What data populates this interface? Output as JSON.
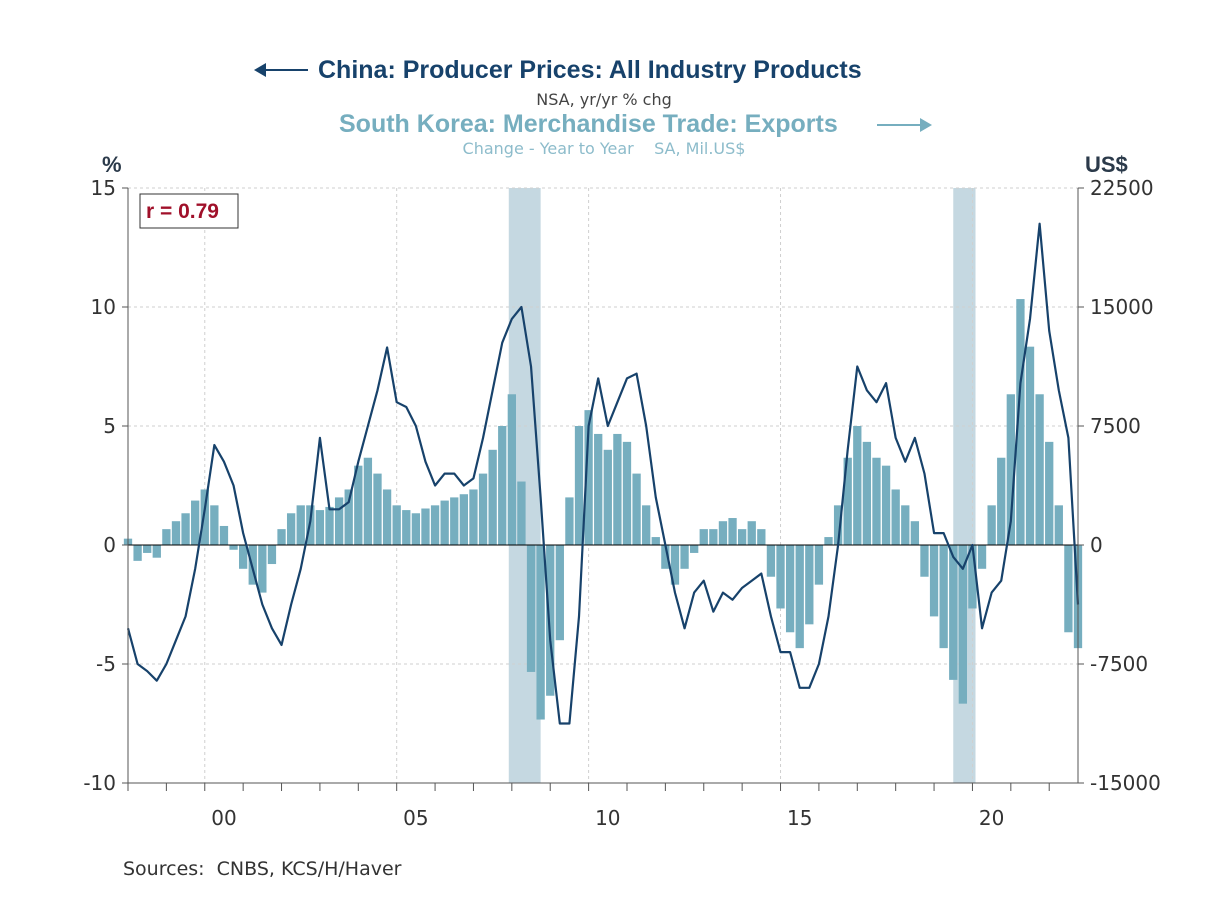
{
  "title_line1": "China: Producer Prices: All Industry Products",
  "title_line2": "NSA, yr/yr % chg",
  "title_line3": "South Korea: Merchandise Trade: Exports",
  "title_line4": "Change - Year to Year    SA, Mil.US$",
  "left_unit": "%",
  "right_unit": "US$",
  "correlation_label": "r = 0.79",
  "sources": "Sources:  CNBS, KCS/H/Haver",
  "colors": {
    "china_line": "#17426b",
    "korea_bars": "#76aebf",
    "recession_shade": "#c5d8e1",
    "correlation_text": "#a0102a"
  },
  "chart_data": {
    "type": "line+bar",
    "x_range": [
      1998.0,
      2022.75
    ],
    "left_axis": {
      "label": "%",
      "ylim": [
        -10,
        15
      ],
      "ticks": [
        -10,
        -5,
        0,
        5,
        10,
        15
      ]
    },
    "right_axis": {
      "label": "US$",
      "ylim": [
        -15000,
        22500
      ],
      "ticks": [
        -15000,
        -7500,
        0,
        7500,
        15000,
        22500
      ]
    },
    "x_ticks": [
      {
        "value": 2000,
        "label": "00"
      },
      {
        "value": 2005,
        "label": "05"
      },
      {
        "value": 2010,
        "label": "10"
      },
      {
        "value": 2015,
        "label": "15"
      },
      {
        "value": 2020,
        "label": "20"
      }
    ],
    "shaded_periods": [
      [
        2007.92,
        2008.75
      ],
      [
        2019.5,
        2020.08
      ]
    ],
    "series": [
      {
        "name": "China: Producer Prices: All Industry Products",
        "axis": "left",
        "style": "line",
        "x": [
          1998.0,
          1998.25,
          1998.5,
          1998.75,
          1999.0,
          1999.25,
          1999.5,
          1999.75,
          2000.0,
          2000.25,
          2000.5,
          2000.75,
          2001.0,
          2001.25,
          2001.5,
          2001.75,
          2002.0,
          2002.25,
          2002.5,
          2002.75,
          2003.0,
          2003.25,
          2003.5,
          2003.75,
          2004.0,
          2004.25,
          2004.5,
          2004.75,
          2005.0,
          2005.25,
          2005.5,
          2005.75,
          2006.0,
          2006.25,
          2006.5,
          2006.75,
          2007.0,
          2007.25,
          2007.5,
          2007.75,
          2008.0,
          2008.25,
          2008.5,
          2008.75,
          2009.0,
          2009.25,
          2009.5,
          2009.75,
          2010.0,
          2010.25,
          2010.5,
          2010.75,
          2011.0,
          2011.25,
          2011.5,
          2011.75,
          2012.0,
          2012.25,
          2012.5,
          2012.75,
          2013.0,
          2013.25,
          2013.5,
          2013.75,
          2014.0,
          2014.25,
          2014.5,
          2014.75,
          2015.0,
          2015.25,
          2015.5,
          2015.75,
          2016.0,
          2016.25,
          2016.5,
          2016.75,
          2017.0,
          2017.25,
          2017.5,
          2017.75,
          2018.0,
          2018.25,
          2018.5,
          2018.75,
          2019.0,
          2019.25,
          2019.5,
          2019.75,
          2020.0,
          2020.25,
          2020.5,
          2020.75,
          2021.0,
          2021.25,
          2021.5,
          2021.75,
          2022.0,
          2022.25,
          2022.5,
          2022.75
        ],
        "values": [
          -3.5,
          -5.0,
          -5.3,
          -5.7,
          -5.0,
          -4.0,
          -3.0,
          -1.0,
          1.5,
          4.2,
          3.5,
          2.5,
          0.5,
          -1.0,
          -2.5,
          -3.5,
          -4.2,
          -2.5,
          -1.0,
          1.0,
          4.5,
          1.5,
          1.5,
          1.8,
          3.5,
          5.0,
          6.5,
          8.3,
          6.0,
          5.8,
          5.0,
          3.5,
          2.5,
          3.0,
          3.0,
          2.5,
          2.8,
          4.5,
          6.5,
          8.5,
          9.5,
          10.0,
          7.5,
          2.0,
          -4.0,
          -7.5,
          -7.5,
          -3.0,
          5.0,
          7.0,
          5.0,
          6.0,
          7.0,
          7.2,
          5.0,
          2.0,
          0.0,
          -2.0,
          -3.5,
          -2.0,
          -1.5,
          -2.8,
          -2.0,
          -2.3,
          -1.8,
          -1.5,
          -1.2,
          -3.0,
          -4.5,
          -4.5,
          -6.0,
          -6.0,
          -5.0,
          -3.0,
          0.0,
          4.0,
          7.5,
          6.5,
          6.0,
          6.8,
          4.5,
          3.5,
          4.5,
          3.0,
          0.5,
          0.5,
          -0.5,
          -1.0,
          0.0,
          -3.5,
          -2.0,
          -1.5,
          1.0,
          6.8,
          9.5,
          13.5,
          9.0,
          6.5,
          4.5,
          -2.5
        ]
      },
      {
        "name": "South Korea: Merchandise Trade: Exports",
        "axis": "right",
        "style": "bar",
        "x": [
          1998.0,
          1998.25,
          1998.5,
          1998.75,
          1999.0,
          1999.25,
          1999.5,
          1999.75,
          2000.0,
          2000.25,
          2000.5,
          2000.75,
          2001.0,
          2001.25,
          2001.5,
          2001.75,
          2002.0,
          2002.25,
          2002.5,
          2002.75,
          2003.0,
          2003.25,
          2003.5,
          2003.75,
          2004.0,
          2004.25,
          2004.5,
          2004.75,
          2005.0,
          2005.25,
          2005.5,
          2005.75,
          2006.0,
          2006.25,
          2006.5,
          2006.75,
          2007.0,
          2007.25,
          2007.5,
          2007.75,
          2008.0,
          2008.25,
          2008.5,
          2008.75,
          2009.0,
          2009.25,
          2009.5,
          2009.75,
          2010.0,
          2010.25,
          2010.5,
          2010.75,
          2011.0,
          2011.25,
          2011.5,
          2011.75,
          2012.0,
          2012.25,
          2012.5,
          2012.75,
          2013.0,
          2013.25,
          2013.5,
          2013.75,
          2014.0,
          2014.25,
          2014.5,
          2014.75,
          2015.0,
          2015.25,
          2015.5,
          2015.75,
          2016.0,
          2016.25,
          2016.5,
          2016.75,
          2017.0,
          2017.25,
          2017.5,
          2017.75,
          2018.0,
          2018.25,
          2018.5,
          2018.75,
          2019.0,
          2019.25,
          2019.5,
          2019.75,
          2020.0,
          2020.25,
          2020.5,
          2020.75,
          2021.0,
          2021.25,
          2021.5,
          2021.75,
          2022.0,
          2022.25,
          2022.5,
          2022.75
        ],
        "values": [
          400,
          -1000,
          -500,
          -800,
          1000,
          1500,
          2000,
          2800,
          3500,
          2500,
          1200,
          -300,
          -1500,
          -2500,
          -3000,
          -1200,
          1000,
          2000,
          2500,
          2500,
          2200,
          2400,
          3000,
          3500,
          5000,
          5500,
          4500,
          3500,
          2500,
          2200,
          2000,
          2300,
          2500,
          2800,
          3000,
          3200,
          3500,
          4500,
          6000,
          7500,
          9500,
          4000,
          -8000,
          -11000,
          -9500,
          -6000,
          3000,
          7500,
          8500,
          7000,
          6000,
          7000,
          6500,
          4500,
          2500,
          500,
          -1500,
          -2500,
          -1500,
          -500,
          1000,
          1000,
          1500,
          1700,
          1000,
          1500,
          1000,
          -2000,
          -4000,
          -5500,
          -6500,
          -5000,
          -2500,
          500,
          2500,
          5500,
          7500,
          6500,
          5500,
          5000,
          3500,
          2500,
          1500,
          -2000,
          -4500,
          -6500,
          -8500,
          -10000,
          -4000,
          -1500,
          2500,
          5500,
          9500,
          15500,
          12500,
          9500,
          6500,
          2500,
          -5500,
          -6500
        ]
      }
    ]
  }
}
